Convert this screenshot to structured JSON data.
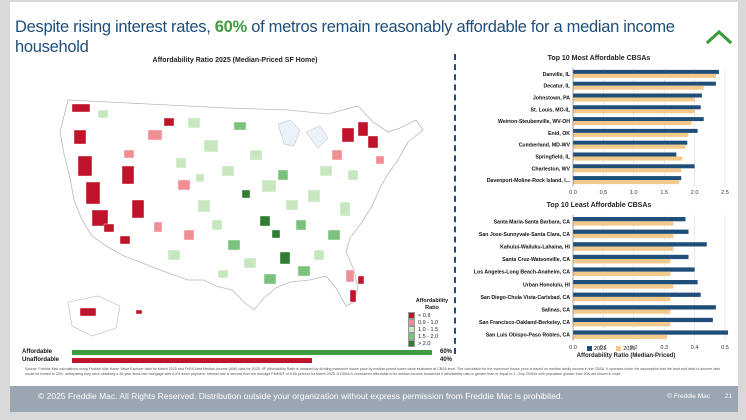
{
  "title": {
    "prefix": "Despite rising interest rates, ",
    "highlight": "60%",
    "suffix": " of metros remain reasonably affordable for a median income household"
  },
  "map": {
    "title": "Affordability Ratio 2025 (Median-Priced SF Home)",
    "legend_title_1": "Affordability",
    "legend_title_2": "Ratio",
    "legend": [
      {
        "label": "< 0.9",
        "color": "#c0142b"
      },
      {
        "label": "0.9 - 1.0",
        "color": "#f08e93"
      },
      {
        "label": "1.0 - 1.5",
        "color": "#c6e7c0"
      },
      {
        "label": "1.5 - 2.0",
        "color": "#7bc27c"
      },
      {
        "label": "> 2.0",
        "color": "#2e7d32"
      }
    ]
  },
  "summary": {
    "affordable_label": "Affordable",
    "affordable_value": 60,
    "affordable_pct": "60%",
    "affordable_color": "#3e9b3e",
    "unaffordable_label": "Unaffordable",
    "unaffordable_value": 40,
    "unaffordable_pct": "40%",
    "unaffordable_color": "#c0142b"
  },
  "chart_data": [
    {
      "type": "bar",
      "orientation": "horizontal",
      "title": "Top 10 Most Affordable CBSAs",
      "categories": [
        "Danville, IL",
        "Decatur, IL",
        "Johnstown, PA",
        "St. Louis, MO-IL",
        "Weirton-Steubenville, WV-OH",
        "Enid, OK",
        "Cumberland, MD-WV",
        "Springfield, IL",
        "Charleston, WV",
        "Davenport-Moline-Rock Island, I..."
      ],
      "series": [
        {
          "name": "2021",
          "color": "#1f4e79",
          "values": [
            2.4,
            2.35,
            2.12,
            2.1,
            2.15,
            2.05,
            1.88,
            1.7,
            2.0,
            1.78
          ]
        },
        {
          "name": "2025",
          "color": "#f3c98b",
          "values": [
            2.35,
            2.15,
            2.0,
            2.0,
            1.95,
            1.9,
            1.85,
            1.8,
            1.78,
            1.75
          ]
        }
      ],
      "xlim": [
        0,
        2.5
      ],
      "xticks": [
        "0.0",
        "0.5",
        "1.0",
        "1.5",
        "2.0",
        "2.5"
      ]
    },
    {
      "type": "bar",
      "orientation": "horizontal",
      "title": "Top 10 Least Affordable CBSAs",
      "categories": [
        "Santa Maria-Santa Barbara, CA",
        "San Jose-Sunnyvale-Santa Clara, CA",
        "Kahului-Wailuku-Lahaina, HI",
        "Santa Cruz-Watsonville, CA",
        "Los Angeles-Long Beach-Anaheim, CA",
        "Urban Honolulu, HI",
        "San Diego-Chula Vista-Carlsbad, CA",
        "Salinas, CA",
        "San Francisco-Oakland-Berkeley, CA",
        "San Luis Obispo-Paso Robles, CA"
      ],
      "series": [
        {
          "name": "2021",
          "color": "#1f4e79",
          "values": [
            0.37,
            0.38,
            0.44,
            0.38,
            0.4,
            0.41,
            0.42,
            0.47,
            0.46,
            0.51
          ]
        },
        {
          "name": "2025",
          "color": "#f3c98b",
          "values": [
            0.33,
            0.33,
            0.33,
            0.32,
            0.32,
            0.33,
            0.32,
            0.32,
            0.32,
            0.31
          ]
        }
      ],
      "xlim": [
        0,
        0.5
      ],
      "xticks": [
        "0.0",
        "0.1",
        "0.2",
        "0.3",
        "0.4",
        "0.5"
      ],
      "xlabel": "Affordability Ratio (Median-Priced)"
    }
  ],
  "source": "Source: Freddie Mac calculations using Freddie Mac Home Value Explorer data for March 2025 and FHFA Area Median Income (AMI) data for 2025. SF Affordability Ratio is obtained by dividing maximum house price by median-priced home value estimates at CBSA level. The calculation for the maximum house price is based on median family income in the CBSA. It operates under the assumption that the front-end debt-to-income ratio would be limited to 33%, anticipating they were obtaining a 30-year fixed-rate mortgage with a 3% down payment. Interest rate is derived from the average PMMS® of 6.65 percent for March 2025. A CBSA is considered affordable to its median-income household if affordability ratio is greater than or equal to 1. Only CBSAs with population greater than 50K are shown in chart.",
  "footer": {
    "copyright": "© 2025 Freddie Mac. All Rights Reserved. Distribution outside your organization without express permission from Freddie Mac is prohibited.",
    "brand": "© Freddie Mac",
    "page": "21"
  }
}
